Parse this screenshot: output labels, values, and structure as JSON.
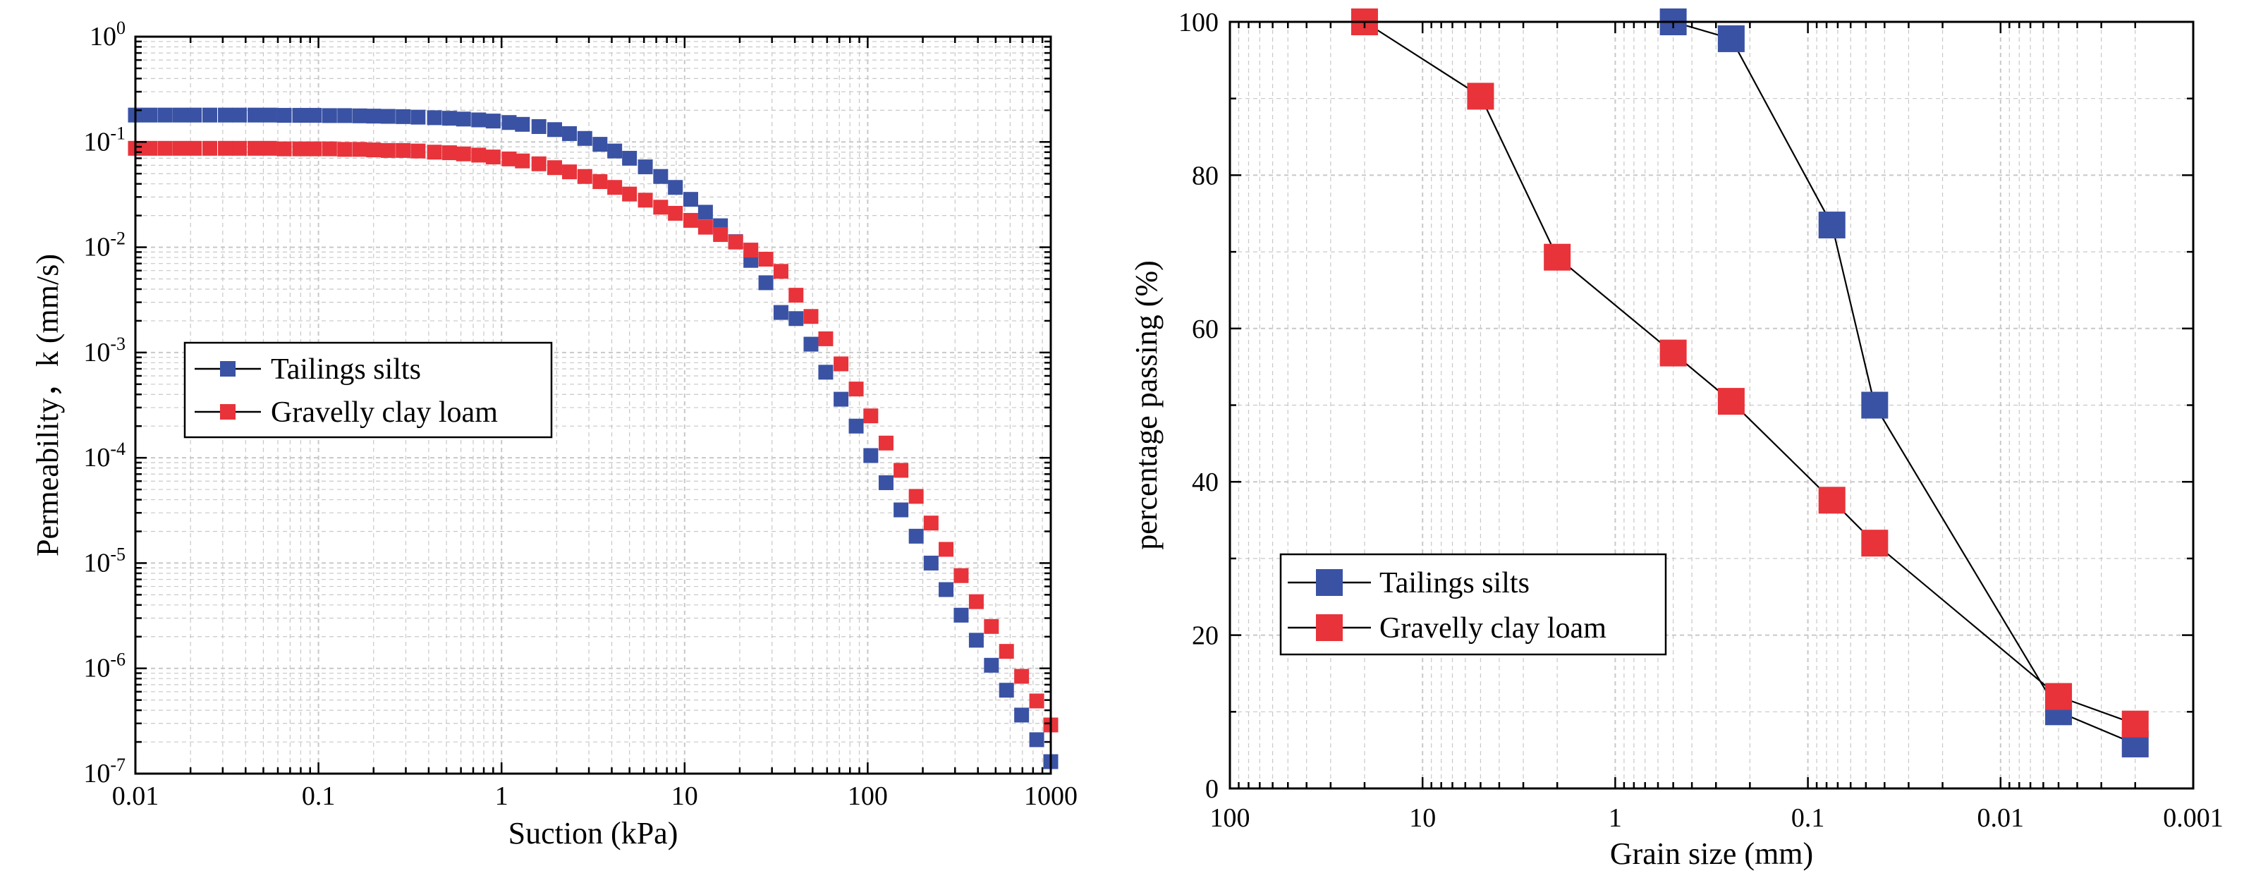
{
  "chart_data": [
    {
      "type": "scatter",
      "xlabel": "Suction (kPa)",
      "ylabel": "Permeability，k (mm/s)",
      "x_scale": "log",
      "y_scale": "log",
      "xlim": [
        0.01,
        1000
      ],
      "ylim": [
        1e-07,
        1
      ],
      "grid": true,
      "legend_position": "center-left",
      "x_ticks": [
        {
          "value": 0.01,
          "label": "0.01"
        },
        {
          "value": 0.1,
          "label": "0.1"
        },
        {
          "value": 1,
          "label": "1"
        },
        {
          "value": 10,
          "label": "10"
        },
        {
          "value": 100,
          "label": "100"
        },
        {
          "value": 1000,
          "label": "1000"
        }
      ],
      "y_ticks": [
        {
          "value": 1e-07,
          "base": "10",
          "exp": "-7"
        },
        {
          "value": 1e-06,
          "base": "10",
          "exp": "-6"
        },
        {
          "value": 1e-05,
          "base": "10",
          "exp": "-5"
        },
        {
          "value": 0.0001,
          "base": "10",
          "exp": "-4"
        },
        {
          "value": 0.001,
          "base": "10",
          "exp": "-3"
        },
        {
          "value": 0.01,
          "base": "10",
          "exp": "-2"
        },
        {
          "value": 0.1,
          "base": "10",
          "exp": "-1"
        },
        {
          "value": 1,
          "base": "10",
          "exp": "0"
        }
      ],
      "series": [
        {
          "name": "Tailings silts",
          "color": "#3a52a4",
          "marker": "square",
          "points": [
            [
              0.01,
              0.18
            ],
            [
              0.012,
              0.18
            ],
            [
              0.0145,
              0.18
            ],
            [
              0.0175,
              0.18
            ],
            [
              0.021,
              0.18
            ],
            [
              0.0255,
              0.18
            ],
            [
              0.031,
              0.18
            ],
            [
              0.037,
              0.18
            ],
            [
              0.045,
              0.18
            ],
            [
              0.054,
              0.18
            ],
            [
              0.065,
              0.179
            ],
            [
              0.079,
              0.179
            ],
            [
              0.095,
              0.179
            ],
            [
              0.115,
              0.178
            ],
            [
              0.139,
              0.178
            ],
            [
              0.168,
              0.177
            ],
            [
              0.2,
              0.176
            ],
            [
              0.24,
              0.175
            ],
            [
              0.29,
              0.174
            ],
            [
              0.35,
              0.172
            ],
            [
              0.43,
              0.17
            ],
            [
              0.52,
              0.168
            ],
            [
              0.62,
              0.165
            ],
            [
              0.75,
              0.162
            ],
            [
              0.9,
              0.158
            ],
            [
              1.1,
              0.153
            ],
            [
              1.3,
              0.147
            ],
            [
              1.6,
              0.14
            ],
            [
              1.95,
              0.131
            ],
            [
              2.35,
              0.12
            ],
            [
              2.85,
              0.108
            ],
            [
              3.45,
              0.095
            ],
            [
              4.15,
              0.082
            ],
            [
              5.0,
              0.07
            ],
            [
              6.1,
              0.058
            ],
            [
              7.4,
              0.047
            ],
            [
              8.9,
              0.037
            ],
            [
              10.8,
              0.0285
            ],
            [
              13,
              0.0215
            ],
            [
              15.7,
              0.016
            ],
            [
              19,
              0.0113
            ],
            [
              23,
              0.0075
            ],
            [
              27.8,
              0.0046
            ],
            [
              33.6,
              0.0024
            ],
            [
              40.6,
              0.0021
            ],
            [
              49,
              0.0012
            ],
            [
              59,
              0.00065
            ],
            [
              71.5,
              0.00036
            ],
            [
              86.5,
              0.0002
            ],
            [
              104,
              0.000105
            ],
            [
              126,
              5.8e-05
            ],
            [
              152,
              3.2e-05
            ],
            [
              184,
              1.8e-05
            ],
            [
              222,
              1e-05
            ],
            [
              268,
              5.6e-06
            ],
            [
              324,
              3.2e-06
            ],
            [
              392,
              1.85e-06
            ],
            [
              474,
              1.07e-06
            ],
            [
              573,
              6.2e-07
            ],
            [
              693,
              3.6e-07
            ],
            [
              838,
              2.1e-07
            ],
            [
              1000,
              1.3e-07
            ]
          ]
        },
        {
          "name": "Gravelly clay loam",
          "color": "#e8333a",
          "marker": "square",
          "points": [
            [
              0.01,
              0.087
            ],
            [
              0.012,
              0.087
            ],
            [
              0.0145,
              0.087
            ],
            [
              0.0175,
              0.087
            ],
            [
              0.021,
              0.087
            ],
            [
              0.0255,
              0.087
            ],
            [
              0.031,
              0.087
            ],
            [
              0.037,
              0.087
            ],
            [
              0.045,
              0.087
            ],
            [
              0.054,
              0.087
            ],
            [
              0.065,
              0.086
            ],
            [
              0.079,
              0.086
            ],
            [
              0.095,
              0.086
            ],
            [
              0.115,
              0.086
            ],
            [
              0.139,
              0.085
            ],
            [
              0.168,
              0.085
            ],
            [
              0.2,
              0.084
            ],
            [
              0.24,
              0.083
            ],
            [
              0.29,
              0.083
            ],
            [
              0.35,
              0.082
            ],
            [
              0.43,
              0.08
            ],
            [
              0.52,
              0.079
            ],
            [
              0.62,
              0.077
            ],
            [
              0.75,
              0.075
            ],
            [
              0.9,
              0.072
            ],
            [
              1.1,
              0.069
            ],
            [
              1.3,
              0.066
            ],
            [
              1.6,
              0.062
            ],
            [
              1.95,
              0.057
            ],
            [
              2.35,
              0.052
            ],
            [
              2.85,
              0.047
            ],
            [
              3.45,
              0.042
            ],
            [
              4.15,
              0.037
            ],
            [
              5.0,
              0.032
            ],
            [
              6.1,
              0.028
            ],
            [
              7.4,
              0.024
            ],
            [
              8.9,
              0.021
            ],
            [
              10.8,
              0.018
            ],
            [
              13,
              0.0155
            ],
            [
              15.7,
              0.0132
            ],
            [
              19,
              0.0112
            ],
            [
              23,
              0.0094
            ],
            [
              27.8,
              0.0077
            ],
            [
              33.6,
              0.0059
            ],
            [
              40.6,
              0.0035
            ],
            [
              49,
              0.0022
            ],
            [
              59,
              0.00135
            ],
            [
              71.5,
              0.00078
            ],
            [
              86.5,
              0.00045
            ],
            [
              104,
              0.00025
            ],
            [
              126,
              0.000138
            ],
            [
              152,
              7.6e-05
            ],
            [
              184,
              4.3e-05
            ],
            [
              222,
              2.4e-05
            ],
            [
              268,
              1.35e-05
            ],
            [
              324,
              7.6e-06
            ],
            [
              392,
              4.3e-06
            ],
            [
              474,
              2.5e-06
            ],
            [
              573,
              1.45e-06
            ],
            [
              693,
              8.4e-07
            ],
            [
              838,
              4.9e-07
            ],
            [
              1000,
              2.9e-07
            ]
          ]
        }
      ]
    },
    {
      "type": "line",
      "xlabel": "Grain size (mm)",
      "ylabel": "percentage passing (%)",
      "x_scale": "log",
      "x_reversed": true,
      "xlim": [
        100,
        0.001
      ],
      "ylim": [
        0,
        100
      ],
      "grid": true,
      "legend_position": "bottom-left",
      "x_ticks": [
        {
          "value": 100,
          "label": "100"
        },
        {
          "value": 10,
          "label": "10"
        },
        {
          "value": 1,
          "label": "1"
        },
        {
          "value": 0.1,
          "label": "0.1"
        },
        {
          "value": 0.01,
          "label": "0.01"
        },
        {
          "value": 0.001,
          "label": "0.001"
        }
      ],
      "y_ticks": [
        {
          "value": 0,
          "label": "0"
        },
        {
          "value": 20,
          "label": "20"
        },
        {
          "value": 40,
          "label": "40"
        },
        {
          "value": 60,
          "label": "60"
        },
        {
          "value": 80,
          "label": "80"
        },
        {
          "value": 100,
          "label": "100"
        }
      ],
      "series": [
        {
          "name": "Tailings silts",
          "color": "#3a52a4",
          "marker": "square",
          "points": [
            [
              0.5,
              100
            ],
            [
              0.25,
              97.8
            ],
            [
              0.075,
              73.5
            ],
            [
              0.045,
              50
            ],
            [
              0.005,
              10
            ],
            [
              0.002,
              5.8
            ]
          ]
        },
        {
          "name": "Gravelly clay loam",
          "color": "#e8333a",
          "marker": "square",
          "points": [
            [
              20,
              100
            ],
            [
              5,
              90.3
            ],
            [
              2,
              69.3
            ],
            [
              0.5,
              56.8
            ],
            [
              0.25,
              50.5
            ],
            [
              0.075,
              37.6
            ],
            [
              0.045,
              32
            ],
            [
              0.005,
              12
            ],
            [
              0.002,
              8.4
            ]
          ]
        }
      ]
    }
  ]
}
